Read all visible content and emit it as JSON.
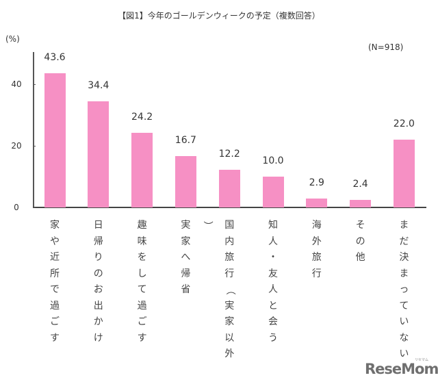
{
  "chart_data": {
    "type": "bar",
    "title": "【図1】今年のゴールデンウィークの予定（複数回答）",
    "ylabel": "(%)",
    "xlabel": "",
    "annotation": "(N=918)",
    "ylim": [
      0,
      45
    ],
    "yticks": [
      0,
      20,
      40
    ],
    "ytick_labels": [
      "0",
      "20",
      "40"
    ],
    "grid": false,
    "legend": null,
    "bar_color": "#f690c4",
    "categories": [
      "家や近所で過ごす",
      "日帰りのお出かけ",
      "趣味をして過ごす",
      "実家へ帰省",
      "国内旅行（実家以外）",
      "知人・友人と会う",
      "海外旅行",
      "その他",
      "まだ決まっていない"
    ],
    "values": [
      43.6,
      34.4,
      24.2,
      16.7,
      12.2,
      10.0,
      2.9,
      2.4,
      22.0
    ],
    "value_labels": [
      "43.6",
      "34.4",
      "24.2",
      "16.7",
      "12.2",
      "10.0",
      "2.9",
      "2.4",
      "22.0"
    ]
  },
  "watermark": {
    "text": "ReseMom.",
    "ruby": "リセマム"
  }
}
